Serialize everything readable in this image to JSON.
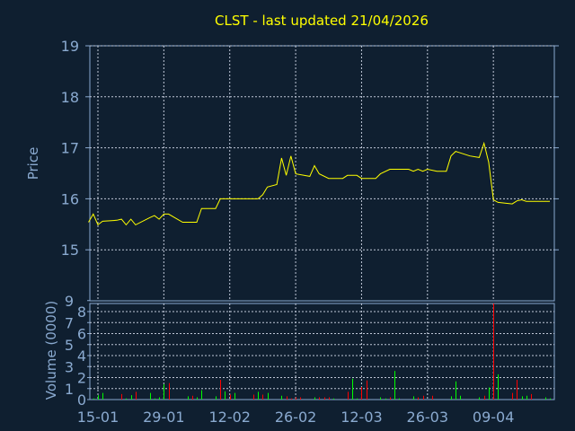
{
  "chart_data": [
    {
      "type": "line",
      "title": "CLST - last updated 21/04/2026",
      "ylabel": "Price",
      "xlabel": "",
      "ylim": [
        14,
        19
      ],
      "yticks": [
        "15",
        "16",
        "17",
        "18",
        "19"
      ],
      "xlim": [
        "2026-01-13",
        "2026-04-21"
      ],
      "xticks": [
        {
          "date": "2026-01-15",
          "label": "15-01"
        },
        {
          "date": "2026-01-29",
          "label": "29-01"
        },
        {
          "date": "2026-02-12",
          "label": "12-02"
        },
        {
          "date": "2026-02-26",
          "label": "26-02"
        },
        {
          "date": "2026-03-12",
          "label": "12-03"
        },
        {
          "date": "2026-03-26",
          "label": "26-03"
        },
        {
          "date": "2026-04-09",
          "label": "09-04"
        }
      ],
      "grid": true,
      "colors": {
        "background": "#0f1f30",
        "line": "#ffff00",
        "axis": "#8aaad0",
        "grid": "#c0c8d8",
        "title": "#ffff00"
      },
      "series": [
        {
          "points": [
            [
              "2026-01-13",
              15.54
            ],
            [
              "2026-01-14",
              15.7
            ],
            [
              "2026-01-15",
              15.49
            ],
            [
              "2026-01-16",
              15.56
            ],
            [
              "2026-01-19",
              15.58
            ],
            [
              "2026-01-20",
              15.6
            ],
            [
              "2026-01-21",
              15.49
            ],
            [
              "2026-01-22",
              15.6
            ],
            [
              "2026-01-23",
              15.49
            ],
            [
              "2026-01-26",
              15.63
            ],
            [
              "2026-01-27",
              15.67
            ],
            [
              "2026-01-28",
              15.6
            ],
            [
              "2026-01-29",
              15.7
            ],
            [
              "2026-01-30",
              15.7
            ],
            [
              "2026-02-02",
              15.54
            ],
            [
              "2026-02-05",
              15.54
            ],
            [
              "2026-02-06",
              15.81
            ],
            [
              "2026-02-09",
              15.81
            ],
            [
              "2026-02-10",
              16.0
            ],
            [
              "2026-02-18",
              16.0
            ],
            [
              "2026-02-19",
              16.08
            ],
            [
              "2026-02-20",
              16.23
            ],
            [
              "2026-02-22",
              16.28
            ],
            [
              "2026-02-23",
              16.8
            ],
            [
              "2026-02-24",
              16.46
            ],
            [
              "2026-02-25",
              16.84
            ],
            [
              "2026-02-26",
              16.49
            ],
            [
              "2026-03-01",
              16.44
            ],
            [
              "2026-03-02",
              16.65
            ],
            [
              "2026-03-03",
              16.49
            ],
            [
              "2026-03-05",
              16.4
            ],
            [
              "2026-03-08",
              16.4
            ],
            [
              "2026-03-09",
              16.46
            ],
            [
              "2026-03-11",
              16.46
            ],
            [
              "2026-03-12",
              16.4
            ],
            [
              "2026-03-15",
              16.4
            ],
            [
              "2026-03-16",
              16.49
            ],
            [
              "2026-03-18",
              16.58
            ],
            [
              "2026-03-22",
              16.58
            ],
            [
              "2026-03-23",
              16.54
            ],
            [
              "2026-03-24",
              16.58
            ],
            [
              "2026-03-25",
              16.54
            ],
            [
              "2026-03-26",
              16.58
            ],
            [
              "2026-03-28",
              16.54
            ],
            [
              "2026-03-30",
              16.54
            ],
            [
              "2026-03-31",
              16.84
            ],
            [
              "2026-04-01",
              16.93
            ],
            [
              "2026-04-04",
              16.84
            ],
            [
              "2026-04-06",
              16.81
            ],
            [
              "2026-04-07",
              17.09
            ],
            [
              "2026-04-08",
              16.72
            ],
            [
              "2026-04-09",
              15.98
            ],
            [
              "2026-04-10",
              15.93
            ],
            [
              "2026-04-13",
              15.9
            ],
            [
              "2026-04-14",
              15.96
            ],
            [
              "2026-04-15",
              15.98
            ],
            [
              "2026-04-16",
              15.95
            ],
            [
              "2026-04-21",
              15.95
            ]
          ]
        }
      ]
    },
    {
      "type": "bar",
      "ylabel": "Volume (0000)",
      "ylim": [
        0,
        9
      ],
      "yticks": [
        "0",
        "1",
        "2",
        "3",
        "4",
        "5",
        "6",
        "7",
        "8",
        "9"
      ],
      "colors": {
        "up": "#00ff00",
        "down": "#ff0000"
      },
      "bars": [
        [
          "2026-01-14",
          0.1,
          "up"
        ],
        [
          "2026-01-15",
          0.4,
          "up"
        ],
        [
          "2026-01-16",
          0.6,
          "up"
        ],
        [
          "2026-01-20",
          0.5,
          "down"
        ],
        [
          "2026-01-21",
          0.1,
          "up"
        ],
        [
          "2026-01-22",
          0.4,
          "up"
        ],
        [
          "2026-01-23",
          0.7,
          "down"
        ],
        [
          "2026-01-26",
          0.6,
          "up"
        ],
        [
          "2026-01-27",
          0.1,
          "up"
        ],
        [
          "2026-01-28",
          0.2,
          "up"
        ],
        [
          "2026-01-29",
          1.4,
          "up"
        ],
        [
          "2026-01-30",
          1.5,
          "down"
        ],
        [
          "2026-02-03",
          0.3,
          "up"
        ],
        [
          "2026-02-04",
          0.35,
          "down"
        ],
        [
          "2026-02-05",
          0.2,
          "up"
        ],
        [
          "2026-02-06",
          0.85,
          "up"
        ],
        [
          "2026-02-09",
          0.3,
          "up"
        ],
        [
          "2026-02-10",
          1.8,
          "down"
        ],
        [
          "2026-02-11",
          0.75,
          "up"
        ],
        [
          "2026-02-12",
          0.45,
          "down"
        ],
        [
          "2026-02-13",
          0.6,
          "up"
        ],
        [
          "2026-02-17",
          0.45,
          "down"
        ],
        [
          "2026-02-18",
          0.7,
          "up"
        ],
        [
          "2026-02-19",
          0.45,
          "down"
        ],
        [
          "2026-02-20",
          0.6,
          "up"
        ],
        [
          "2026-02-23",
          0.35,
          "up"
        ],
        [
          "2026-02-24",
          0.3,
          "down"
        ],
        [
          "2026-02-25",
          0.1,
          "down"
        ],
        [
          "2026-02-26",
          0.2,
          "down"
        ],
        [
          "2026-02-27",
          0.2,
          "down"
        ],
        [
          "2026-03-02",
          0.2,
          "up"
        ],
        [
          "2026-03-03",
          0.2,
          "down"
        ],
        [
          "2026-03-04",
          0.2,
          "down"
        ],
        [
          "2026-03-05",
          0.2,
          "down"
        ],
        [
          "2026-03-06",
          0.1,
          "up"
        ],
        [
          "2026-03-09",
          0.7,
          "down"
        ],
        [
          "2026-03-10",
          1.9,
          "up"
        ],
        [
          "2026-03-11",
          0.1,
          "up"
        ],
        [
          "2026-03-12",
          1.15,
          "down"
        ],
        [
          "2026-03-13",
          1.75,
          "down"
        ],
        [
          "2026-03-16",
          0.2,
          "up"
        ],
        [
          "2026-03-17",
          0.1,
          "up"
        ],
        [
          "2026-03-18",
          0.2,
          "down"
        ],
        [
          "2026-03-19",
          2.6,
          "up"
        ],
        [
          "2026-03-20",
          0.1,
          "up"
        ],
        [
          "2026-03-23",
          0.3,
          "up"
        ],
        [
          "2026-03-24",
          0.2,
          "down"
        ],
        [
          "2026-03-25",
          0.35,
          "down"
        ],
        [
          "2026-03-27",
          0.35,
          "down"
        ],
        [
          "2026-03-31",
          0.3,
          "up"
        ],
        [
          "2026-04-01",
          1.65,
          "up"
        ],
        [
          "2026-04-02",
          0.35,
          "up"
        ],
        [
          "2026-04-06",
          0.2,
          "up"
        ],
        [
          "2026-04-07",
          0.35,
          "down"
        ],
        [
          "2026-04-08",
          1.1,
          "up"
        ],
        [
          "2026-04-09",
          9.5,
          "down"
        ],
        [
          "2026-04-10",
          2.3,
          "up"
        ],
        [
          "2026-04-13",
          0.6,
          "down"
        ],
        [
          "2026-04-14",
          1.8,
          "down"
        ],
        [
          "2026-04-15",
          0.3,
          "up"
        ],
        [
          "2026-04-16",
          0.35,
          "up"
        ],
        [
          "2026-04-17",
          0.5,
          "down"
        ],
        [
          "2026-04-20",
          0.2,
          "up"
        ],
        [
          "2026-04-21",
          0.1,
          "up"
        ]
      ]
    }
  ]
}
